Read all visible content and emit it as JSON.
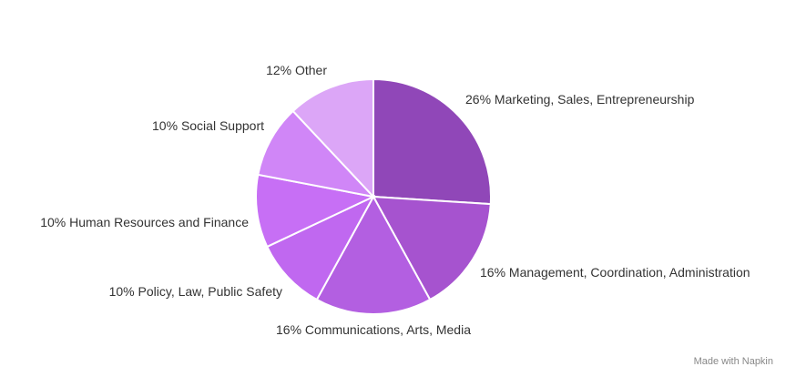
{
  "chart_data": {
    "type": "pie",
    "categories": [
      "Marketing, Sales, Entrepreneurship",
      "Management, Coordination, Administration",
      "Communications, Arts, Media",
      "Policy, Law, Public Safety",
      "Human Resources and Finance",
      "Social Support",
      "Other"
    ],
    "values": [
      26,
      16,
      16,
      10,
      10,
      10,
      12
    ],
    "value_labels": [
      "26%",
      "16%",
      "16%",
      "10%",
      "10%",
      "10%",
      "12%"
    ],
    "colors": [
      "#9047b8",
      "#a653cf",
      "#b35fe1",
      "#c068f0",
      "#c76ff5",
      "#d086f7",
      "#dca6f7"
    ]
  },
  "footer": "Made with Napkin"
}
